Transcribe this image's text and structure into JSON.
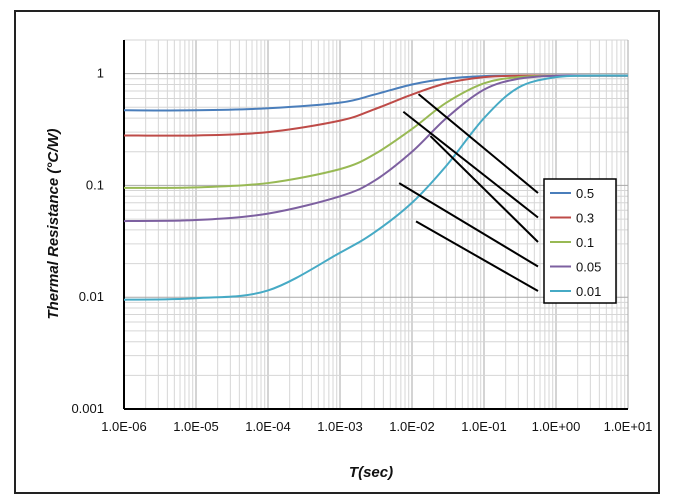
{
  "chart_data": {
    "type": "line",
    "title": "",
    "xlabel": "T(sec)",
    "ylabel": "Thermal Resistance  (°C/W)",
    "x_scale": "log",
    "y_scale": "log",
    "xlim": [
      1e-06,
      10
    ],
    "ylim": [
      0.001,
      2
    ],
    "x_ticks": [
      "1.0E-06",
      "1.0E-05",
      "1.0E-04",
      "1.0E-03",
      "1.0E-02",
      "1.0E-01",
      "1.0E+00",
      "1.0E+01"
    ],
    "y_ticks": [
      "0.001",
      "0.01",
      "0.1",
      "1"
    ],
    "grid": true,
    "legend_position": "right",
    "x": [
      1e-06,
      1e-05,
      0.0001,
      0.001,
      0.003,
      0.01,
      0.03,
      0.1,
      0.3,
      1,
      3,
      10
    ],
    "series": [
      {
        "name": "0.5",
        "color": "#4a7ebb",
        "values": [
          0.47,
          0.47,
          0.49,
          0.55,
          0.65,
          0.8,
          0.9,
          0.95,
          0.96,
          0.96,
          0.96,
          0.96
        ]
      },
      {
        "name": "0.3",
        "color": "#be4b48",
        "values": [
          0.28,
          0.28,
          0.3,
          0.38,
          0.48,
          0.65,
          0.82,
          0.93,
          0.96,
          0.96,
          0.96,
          0.96
        ]
      },
      {
        "name": "0.1",
        "color": "#98b954",
        "values": [
          0.095,
          0.096,
          0.105,
          0.14,
          0.19,
          0.32,
          0.55,
          0.82,
          0.93,
          0.96,
          0.96,
          0.96
        ]
      },
      {
        "name": "0.05",
        "color": "#7d60a0",
        "values": [
          0.048,
          0.049,
          0.056,
          0.08,
          0.11,
          0.2,
          0.4,
          0.72,
          0.9,
          0.96,
          0.96,
          0.96
        ]
      },
      {
        "name": "0.01",
        "color": "#46aac5",
        "values": [
          0.0095,
          0.0098,
          0.0115,
          0.025,
          0.038,
          0.07,
          0.15,
          0.4,
          0.75,
          0.93,
          0.96,
          0.96
        ]
      }
    ]
  }
}
